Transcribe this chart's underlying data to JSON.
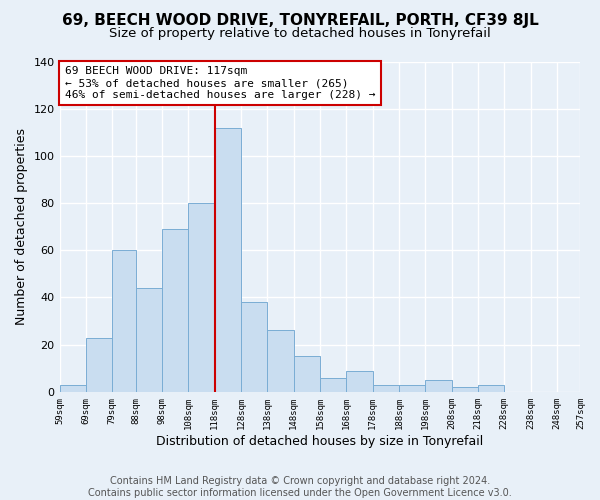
{
  "title": "69, BEECH WOOD DRIVE, TONYREFAIL, PORTH, CF39 8JL",
  "subtitle": "Size of property relative to detached houses in Tonyrefail",
  "xlabel": "Distribution of detached houses by size in Tonyrefail",
  "ylabel": "Number of detached properties",
  "bin_left_edges": [
    59,
    69,
    79,
    88,
    98,
    108,
    118,
    128,
    138,
    148,
    158,
    168,
    178,
    188,
    198,
    208,
    218,
    228,
    238,
    248
  ],
  "bin_widths": [
    10,
    10,
    9,
    10,
    10,
    10,
    10,
    10,
    10,
    10,
    10,
    10,
    10,
    10,
    10,
    10,
    10,
    10,
    10,
    9
  ],
  "counts": [
    3,
    23,
    60,
    44,
    69,
    80,
    112,
    38,
    26,
    15,
    6,
    9,
    3,
    3,
    5,
    2,
    3,
    0,
    0,
    0
  ],
  "bar_color": "#c9ddf0",
  "bar_edge_color": "#7aadd4",
  "vline_x": 118,
  "vline_color": "#cc0000",
  "annotation_text": "69 BEECH WOOD DRIVE: 117sqm\n← 53% of detached houses are smaller (265)\n46% of semi-detached houses are larger (228) →",
  "annotation_box_edge": "#cc0000",
  "annotation_box_bg": "white",
  "tick_positions": [
    59,
    69,
    79,
    88,
    98,
    108,
    118,
    128,
    138,
    148,
    158,
    168,
    178,
    188,
    198,
    208,
    218,
    228,
    238,
    248,
    257
  ],
  "tick_labels": [
    "59sqm",
    "69sqm",
    "79sqm",
    "88sqm",
    "98sqm",
    "108sqm",
    "118sqm",
    "128sqm",
    "138sqm",
    "148sqm",
    "158sqm",
    "168sqm",
    "178sqm",
    "188sqm",
    "198sqm",
    "208sqm",
    "218sqm",
    "228sqm",
    "238sqm",
    "248sqm",
    "257sqm"
  ],
  "ylim": [
    0,
    140
  ],
  "yticks": [
    0,
    20,
    40,
    60,
    80,
    100,
    120,
    140
  ],
  "footnote": "Contains HM Land Registry data © Crown copyright and database right 2024.\nContains public sector information licensed under the Open Government Licence v3.0.",
  "bg_color": "#e8f0f8",
  "plot_bg_color": "#e8f0f8",
  "title_fontsize": 11,
  "subtitle_fontsize": 9.5,
  "xlabel_fontsize": 9,
  "ylabel_fontsize": 9,
  "annotation_fontsize": 8,
  "footnote_fontsize": 7,
  "grid_color": "#ffffff"
}
